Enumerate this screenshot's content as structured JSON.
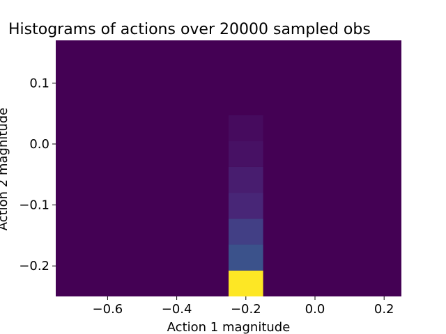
{
  "chart_data": {
    "type": "heatmap",
    "title": "Histograms of actions over 20000 sampled obs",
    "xlabel": "Action 1 magnitude",
    "ylabel": "Action 2 magnitude",
    "xlim": [
      -0.75,
      0.25
    ],
    "ylim": [
      -0.25,
      0.17
    ],
    "xticks": [
      -0.6,
      -0.4,
      -0.2,
      0.0,
      0.2
    ],
    "xtick_labels": [
      "−0.6",
      "−0.4",
      "−0.2",
      "0.0",
      "0.2"
    ],
    "yticks": [
      -0.2,
      -0.1,
      0.0,
      0.1
    ],
    "ytick_labels": [
      "−0.2",
      "−0.1",
      "0.0",
      "0.1"
    ],
    "colormap": "viridis",
    "background_color": "#440154",
    "grid": false,
    "colorbar": false,
    "cells": [
      {
        "x0": -0.25,
        "x1": -0.15,
        "y0": -0.25,
        "y1": -0.2075,
        "color": "#fde725"
      },
      {
        "x0": -0.25,
        "x1": -0.15,
        "y0": -0.2075,
        "y1": -0.165,
        "color": "#3b528b"
      },
      {
        "x0": -0.25,
        "x1": -0.15,
        "y0": -0.165,
        "y1": -0.1225,
        "color": "#423f85"
      },
      {
        "x0": -0.25,
        "x1": -0.15,
        "y0": -0.1225,
        "y1": -0.08,
        "color": "#482677"
      },
      {
        "x0": -0.25,
        "x1": -0.15,
        "y0": -0.08,
        "y1": -0.0375,
        "color": "#481d6f"
      },
      {
        "x0": -0.25,
        "x1": -0.15,
        "y0": -0.0375,
        "y1": 0.005,
        "color": "#471164"
      },
      {
        "x0": -0.25,
        "x1": -0.15,
        "y0": 0.005,
        "y1": 0.0475,
        "color": "#460b5e"
      }
    ]
  }
}
